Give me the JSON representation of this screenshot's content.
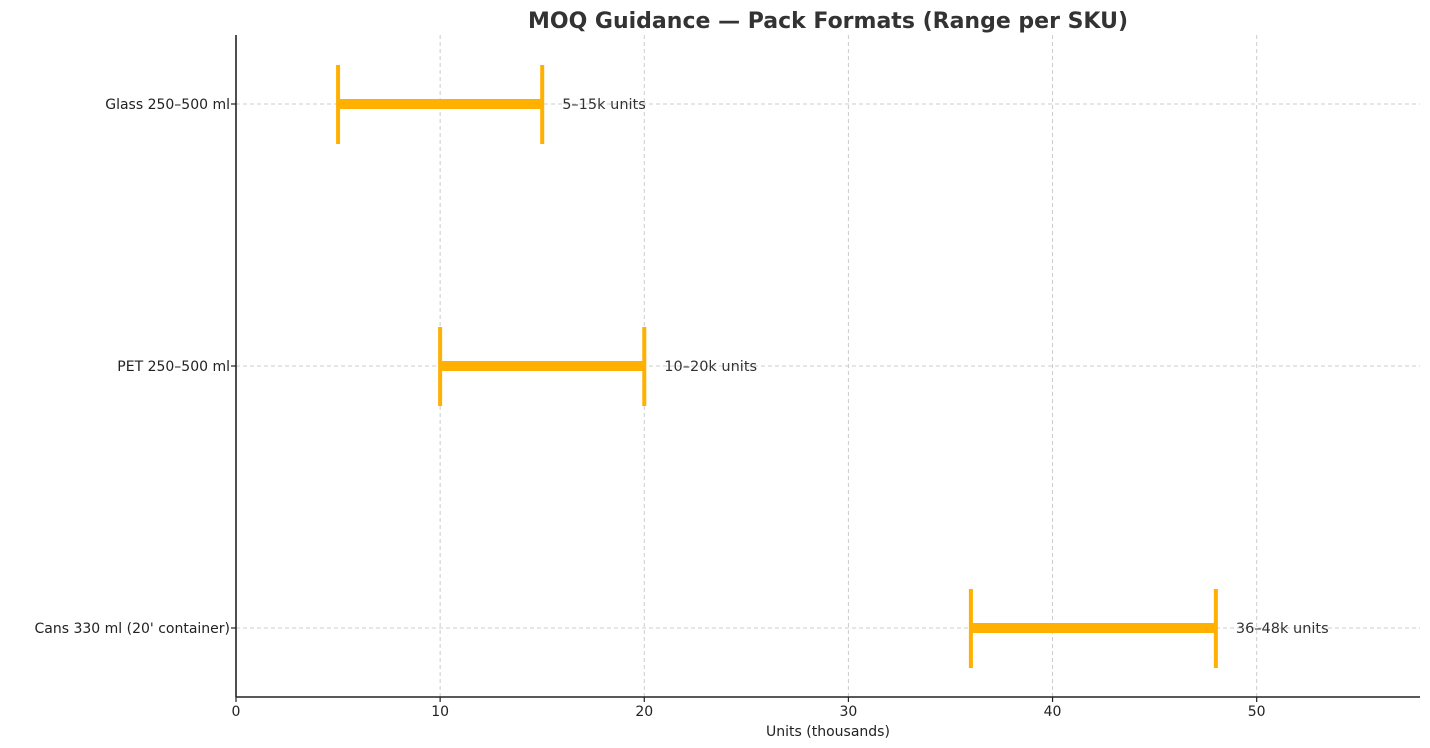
{
  "chart_data": {
    "type": "range-bar",
    "title": "MOQ Guidance — Pack Formats (Range per SKU)",
    "xlabel": "Units (thousands)",
    "ylabel": "",
    "xlim": [
      0,
      58
    ],
    "xticks": [
      0,
      10,
      20,
      30,
      40,
      50
    ],
    "xtick_labels": [
      "0",
      "10",
      "20",
      "30",
      "40",
      "50"
    ],
    "grid": true,
    "legend": null,
    "color": "#FFB000",
    "categories": [
      "Glass 250–500 ml",
      "PET 250–500 ml",
      "Cans 330 ml (20' container)"
    ],
    "series": [
      {
        "name": "Glass 250–500 ml",
        "min": 5,
        "max": 15,
        "label": "5–15k units"
      },
      {
        "name": "PET 250–500 ml",
        "min": 10,
        "max": 20,
        "label": "10–20k units"
      },
      {
        "name": "Cans 330 ml (20' container)",
        "min": 36,
        "max": 48,
        "label": "36–48k units"
      }
    ]
  }
}
